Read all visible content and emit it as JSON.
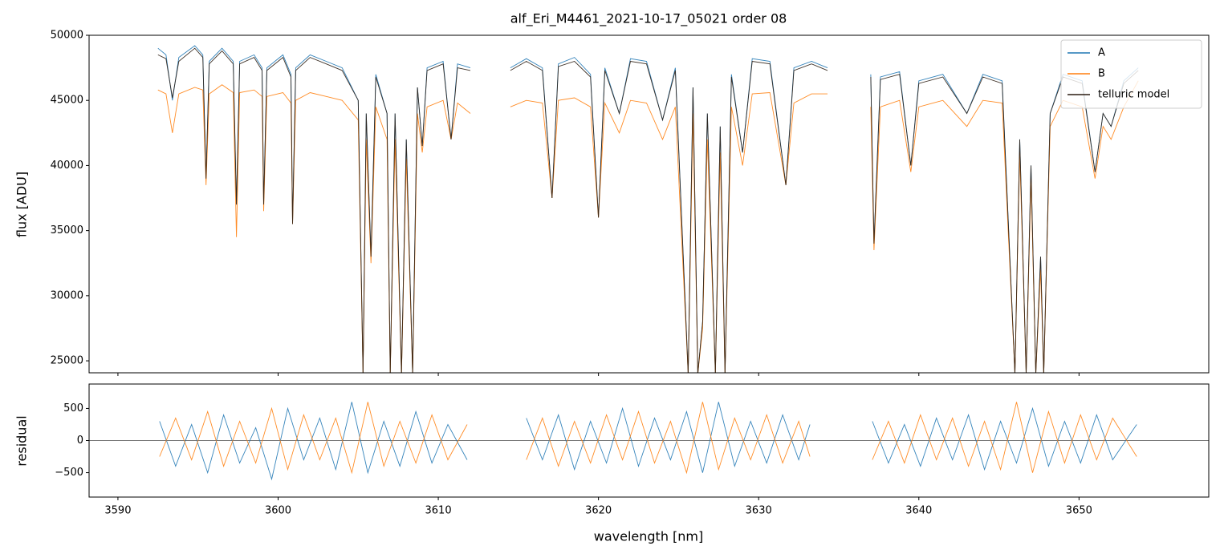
{
  "chart_data": [
    {
      "type": "line",
      "title": "alf_Eri_M4461_2021-10-17_05021  order 08",
      "y_label": "flux [ADU]",
      "xlim": [
        3588.2,
        3658.1
      ],
      "ylim": [
        24080,
        50000
      ],
      "yticks": [
        25000,
        30000,
        35000,
        40000,
        45000,
        50000
      ],
      "legend": "upper right",
      "x": [
        3592.5,
        3593.0,
        3593.4,
        3593.8,
        3594.8,
        3595.3,
        3595.5,
        3595.7,
        3596.5,
        3597.2,
        3597.4,
        3597.6,
        3598.5,
        3599.0,
        3599.1,
        3599.3,
        3600.3,
        3600.8,
        3600.9,
        3601.1,
        3602.0,
        3603.0,
        3604.0,
        3605.0,
        3605.3,
        3605.5,
        3605.8,
        3606.1,
        3606.8,
        3607.0,
        3607.3,
        3607.7,
        3608.0,
        3608.4,
        3608.7,
        3609.0,
        3609.3,
        3610.3,
        3610.8,
        3611.2,
        3612.0,
        null,
        3614.5,
        3615.5,
        3616.5,
        3617.1,
        3617.5,
        3618.5,
        3619.5,
        3620.0,
        3620.4,
        3621.3,
        3622.0,
        3623.0,
        3624.0,
        3624.8,
        3625.6,
        3625.9,
        3626.2,
        3626.5,
        3626.8,
        3627.3,
        3627.6,
        3627.9,
        3628.3,
        3629.0,
        3629.6,
        3630.7,
        3631.7,
        3632.2,
        3633.3,
        3634.3,
        null,
        3637.0,
        3637.2,
        3637.6,
        3638.8,
        3639.5,
        3640.0,
        3641.5,
        3643.0,
        3644.0,
        3645.2,
        3646.0,
        3646.3,
        3646.7,
        3647.0,
        3647.3,
        3647.6,
        3647.8,
        3648.2,
        3649.0,
        3650.2,
        3651.0,
        3651.5,
        3652.0,
        3652.8,
        3653.7
      ],
      "series": [
        {
          "name": "A",
          "color": "#1f77b4",
          "values": [
            49000,
            48500,
            45000,
            48300,
            49200,
            48500,
            39000,
            48000,
            49000,
            48000,
            37000,
            48000,
            48500,
            47500,
            37000,
            47500,
            48500,
            47000,
            35500,
            47500,
            48500,
            48000,
            47500,
            45000,
            24000,
            44000,
            33000,
            47000,
            44000,
            24000,
            44000,
            24000,
            42000,
            24000,
            46000,
            41500,
            47500,
            48000,
            42000,
            47800,
            47500,
            null,
            47500,
            48200,
            47500,
            37500,
            47800,
            48300,
            47000,
            36000,
            47500,
            44000,
            48200,
            48000,
            43500,
            47500,
            24000,
            46000,
            24000,
            28000,
            44000,
            24000,
            43000,
            24000,
            47000,
            41000,
            48200,
            48000,
            38500,
            47500,
            48000,
            47500,
            null,
            47000,
            34000,
            46800,
            47200,
            40000,
            46500,
            47000,
            44000,
            47000,
            46500,
            24000,
            42000,
            24000,
            40000,
            24000,
            33000,
            24000,
            44000,
            47000,
            46500,
            39500,
            44000,
            43000,
            46500,
            47500
          ]
        },
        {
          "name": "B",
          "color": "#ff7f0e",
          "values": [
            45800,
            45500,
            42500,
            45500,
            46000,
            45800,
            38500,
            45500,
            46200,
            45600,
            34500,
            45600,
            45800,
            45300,
            36500,
            45300,
            45600,
            44800,
            35500,
            45000,
            45600,
            45300,
            45000,
            43500,
            24000,
            42000,
            32500,
            44500,
            42000,
            24000,
            42000,
            24000,
            40500,
            24000,
            44000,
            41000,
            44500,
            45000,
            42000,
            44800,
            44000,
            null,
            44500,
            45000,
            44800,
            37500,
            45000,
            45200,
            44500,
            36000,
            44800,
            42500,
            45000,
            44800,
            42000,
            44500,
            24000,
            44000,
            24000,
            27500,
            42000,
            24000,
            41000,
            24000,
            44500,
            40000,
            45500,
            45600,
            38500,
            44800,
            45500,
            45500,
            null,
            44500,
            33500,
            44500,
            45000,
            39500,
            44500,
            45000,
            43000,
            45000,
            44800,
            24000,
            41000,
            24000,
            39000,
            24000,
            32000,
            24000,
            43000,
            45000,
            44500,
            39000,
            43000,
            42000,
            44500,
            46500
          ]
        },
        {
          "name": "telluric model",
          "color": "#2b1d12",
          "values": [
            48500,
            48200,
            45200,
            48000,
            49000,
            48300,
            39000,
            47800,
            48800,
            47800,
            37000,
            47800,
            48300,
            47300,
            37000,
            47300,
            48300,
            46800,
            35500,
            47300,
            48300,
            47800,
            47300,
            45000,
            24000,
            44000,
            33000,
            46800,
            44000,
            24000,
            44000,
            24000,
            42000,
            24000,
            46000,
            41500,
            47300,
            47800,
            42000,
            47500,
            47300,
            null,
            47300,
            48000,
            47300,
            37500,
            47600,
            48000,
            46800,
            36000,
            47300,
            44000,
            48000,
            47800,
            43500,
            47300,
            24000,
            46000,
            24000,
            28000,
            44000,
            24000,
            43000,
            24000,
            46800,
            41000,
            48000,
            47800,
            38500,
            47300,
            47800,
            47300,
            null,
            46800,
            34000,
            46600,
            47000,
            40000,
            46300,
            46800,
            44000,
            46800,
            46300,
            24000,
            42000,
            24000,
            40000,
            24000,
            33000,
            24000,
            44000,
            46800,
            46300,
            39500,
            44000,
            43000,
            46300,
            47300
          ]
        }
      ]
    },
    {
      "type": "line",
      "y_label": "residual",
      "x_label": "wavelength [nm]",
      "xlim": [
        3588.2,
        3658.1
      ],
      "ylim": [
        -880,
        880
      ],
      "hline": 0,
      "xticks": [
        3590,
        3600,
        3610,
        3620,
        3630,
        3640,
        3650
      ],
      "yticks": [
        {
          "value": -500,
          "label": "−500"
        },
        0,
        500
      ],
      "x": [
        3592.6,
        3593.6,
        3594.6,
        3595.6,
        3596.6,
        3597.6,
        3598.6,
        3599.6,
        3600.6,
        3601.6,
        3602.6,
        3603.6,
        3604.6,
        3605.6,
        3606.6,
        3607.6,
        3608.6,
        3609.6,
        3610.6,
        3611.8,
        null,
        3615.5,
        3616.5,
        3617.5,
        3618.5,
        3619.5,
        3620.5,
        3621.5,
        3622.5,
        3623.5,
        3624.5,
        3625.5,
        3626.5,
        3627.5,
        3628.5,
        3629.5,
        3630.5,
        3631.5,
        3632.5,
        3633.2,
        null,
        3637.1,
        3638.1,
        3639.1,
        3640.1,
        3641.1,
        3642.1,
        3643.1,
        3644.1,
        3645.1,
        3646.1,
        3647.1,
        3648.1,
        3649.1,
        3650.1,
        3651.1,
        3652.1,
        3653.6
      ],
      "series": [
        {
          "name": "A",
          "color": "#1f77b4",
          "values": [
            300,
            -400,
            250,
            -500,
            400,
            -350,
            200,
            -600,
            500,
            -300,
            350,
            -450,
            600,
            -500,
            300,
            -400,
            450,
            -350,
            250,
            -300,
            null,
            350,
            -300,
            400,
            -450,
            300,
            -350,
            500,
            -400,
            350,
            -300,
            450,
            -500,
            600,
            -400,
            300,
            -350,
            400,
            -300,
            250,
            null,
            300,
            -350,
            250,
            -400,
            350,
            -300,
            400,
            -450,
            300,
            -350,
            500,
            -400,
            300,
            -350,
            400,
            -300,
            250
          ]
        },
        {
          "name": "B",
          "color": "#ff7f0e",
          "values": [
            -250,
            350,
            -300,
            450,
            -400,
            300,
            -350,
            500,
            -450,
            400,
            -300,
            350,
            -500,
            600,
            -400,
            300,
            -350,
            400,
            -300,
            250,
            null,
            -300,
            350,
            -400,
            300,
            -350,
            400,
            -300,
            450,
            -350,
            300,
            -500,
            600,
            -450,
            350,
            -300,
            400,
            -350,
            300,
            -250,
            null,
            -300,
            300,
            -350,
            400,
            -300,
            350,
            -400,
            300,
            -450,
            600,
            -500,
            450,
            -350,
            400,
            -300,
            350,
            -250
          ]
        }
      ]
    }
  ]
}
